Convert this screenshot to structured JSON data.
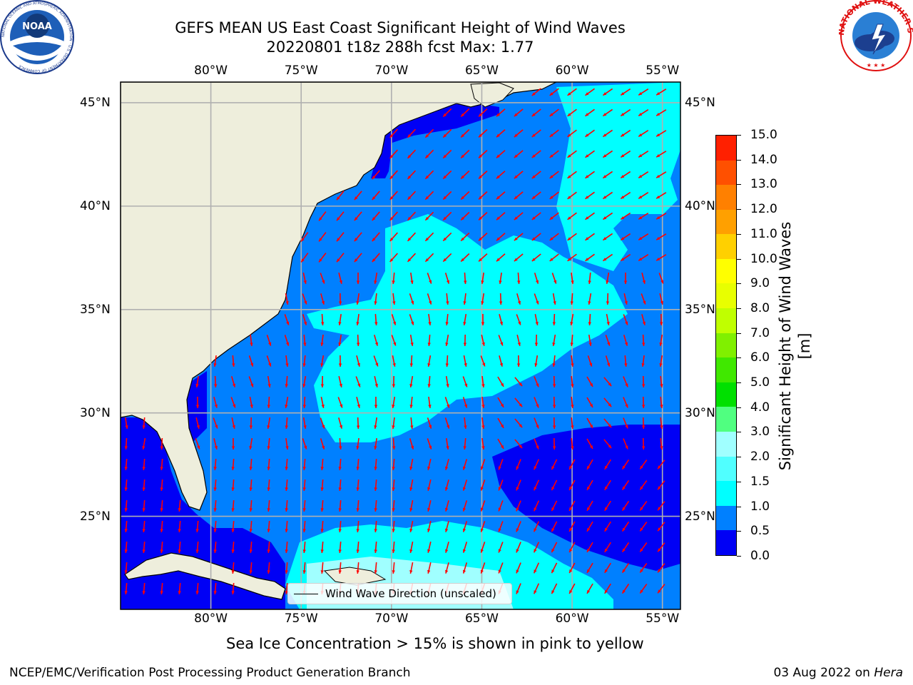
{
  "header": {
    "title_line1": "GEFS MEAN US East Coast Significant Height of Wind Waves",
    "title_line2": "20220801 t18z 288h fcst   Max: 1.77"
  },
  "logos": {
    "left": "noaa-logo",
    "left_text": "NOAA",
    "left_ring_text": "NATIONAL OCEANIC AND ATMOSPHERIC ADMINISTRATION · U.S. DEPARTMENT OF COMMERCE",
    "right": "nws-logo",
    "right_ring_text": "NATIONAL WEATHER SERVICE"
  },
  "map": {
    "lon_labels": [
      "80°W",
      "75°W",
      "70°W",
      "65°W",
      "60°W",
      "55°W"
    ],
    "lat_labels": [
      "45°N",
      "40°N",
      "35°N",
      "30°N",
      "25°N"
    ],
    "lon_range": [
      -85,
      -54
    ],
    "lat_range": [
      20.5,
      46
    ],
    "colors": {
      "land": "#eeeedc",
      "band_0_0.5": "#0000f5",
      "band_0.5_1.0": "#0080ff",
      "band_1.0_1.5": "#00ffff",
      "arrow": "#ff0000",
      "grid": "#b0b0b0"
    }
  },
  "colorbar": {
    "label": "Significant Height of Wind Waves [m]",
    "ticks": [
      "0.0",
      "0.5",
      "1.0",
      "1.5",
      "2.0",
      "3.0",
      "4.0",
      "5.0",
      "6.0",
      "7.0",
      "8.0",
      "9.0",
      "10.0",
      "11.0",
      "12.0",
      "13.0",
      "14.0",
      "15.0"
    ],
    "colors": [
      "#0000f5",
      "#0080ff",
      "#00ffff",
      "#50ffff",
      "#a0ffff",
      "#50ff80",
      "#00e000",
      "#40e800",
      "#80f000",
      "#c0ff00",
      "#e8ff00",
      "#ffff00",
      "#ffd000",
      "#ffa000",
      "#ff8000",
      "#ff5000",
      "#ff2000"
    ]
  },
  "legend": {
    "label": "Wind Wave Direction (unscaled)"
  },
  "notes": {
    "sea_ice": "Sea Ice Concentration > 15% is shown in pink to yellow",
    "footer_left": "NCEP/EMC/Verification Post Processing Product Generation Branch",
    "footer_date": "03 Aug 2022 on ",
    "footer_host": "Hera"
  }
}
